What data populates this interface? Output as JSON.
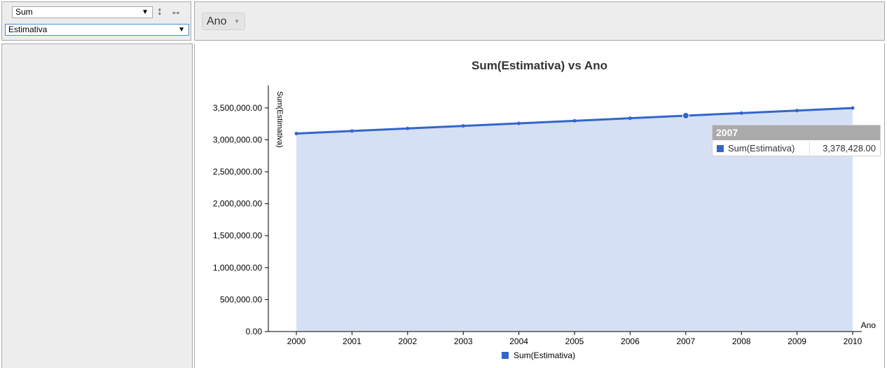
{
  "controls": {
    "aggregator": {
      "value": "Sum",
      "arrow": "▼"
    },
    "value_field": {
      "value": "Estimativa",
      "arrow": "▼"
    },
    "sort_icon": "↕",
    "swap_icon": "↔",
    "column_pill": {
      "label": "Ano",
      "arrow": "▼"
    }
  },
  "tooltip": {
    "header": "2007",
    "series": "Sum(Estimativa)",
    "value": "3,378,428.00"
  },
  "colors": {
    "line": "#3366cc",
    "area": "#d6e0f4",
    "panel": "#ededed"
  },
  "chart_data": {
    "type": "area",
    "title": "Sum(Estimativa) vs Ano",
    "xlabel": "Ano",
    "ylabel": "Sum(Estimativa)",
    "x": [
      "2000",
      "2001",
      "2002",
      "2003",
      "2004",
      "2005",
      "2006",
      "2007",
      "2008",
      "2009",
      "2010"
    ],
    "series": [
      {
        "name": "Sum(Estimativa)",
        "values": [
          3098000,
          3138000,
          3178000,
          3218000,
          3258000,
          3298000,
          3338000,
          3378428,
          3418000,
          3458000,
          3498000
        ]
      }
    ],
    "ylim": [
      0,
      3850000
    ],
    "yticks": [
      0,
      500000,
      1000000,
      1500000,
      2000000,
      2500000,
      3000000,
      3500000
    ],
    "ytick_labels": [
      "0.00",
      "500,000.00",
      "1,000,000.00",
      "1,500,000.00",
      "2,000,000.00",
      "2,500,000.00",
      "3,000,000.00",
      "3,500,000.00"
    ],
    "highlight_category": "2007",
    "legend": "bottom-center",
    "grid": false
  }
}
